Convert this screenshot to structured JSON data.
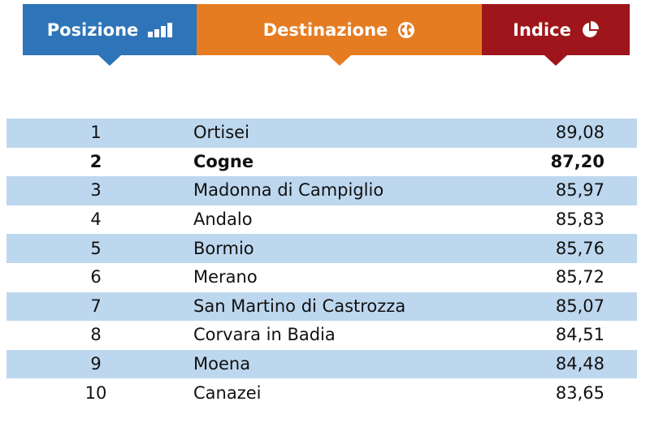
{
  "header": {
    "position": {
      "label": "Posizione",
      "icon": "bar-chart-icon",
      "color": "#2e74b8"
    },
    "destination": {
      "label": "Destinazione",
      "icon": "globe-icon",
      "color": "#e67c22"
    },
    "index": {
      "label": "Indice",
      "icon": "pie-chart-icon",
      "color": "#9e161b"
    }
  },
  "rows": [
    {
      "position": "1",
      "destination": "Ortisei",
      "index": "89,08"
    },
    {
      "position": "2",
      "destination": "Cogne",
      "index": "87,20",
      "highlight": true
    },
    {
      "position": "3",
      "destination": "Madonna di Campiglio",
      "index": "85,97"
    },
    {
      "position": "4",
      "destination": "Andalo",
      "index": "85,83"
    },
    {
      "position": "5",
      "destination": "Bormio",
      "index": "85,76"
    },
    {
      "position": "6",
      "destination": "Merano",
      "index": "85,72"
    },
    {
      "position": "7",
      "destination": "San Martino di Castrozza",
      "index": "85,07"
    },
    {
      "position": "8",
      "destination": "Corvara in Badia",
      "index": "84,51"
    },
    {
      "position": "9",
      "destination": "Moena",
      "index": "84,48"
    },
    {
      "position": "10",
      "destination": "Canazei",
      "index": "83,65"
    }
  ],
  "row_shading_color": "#bdd7ee"
}
